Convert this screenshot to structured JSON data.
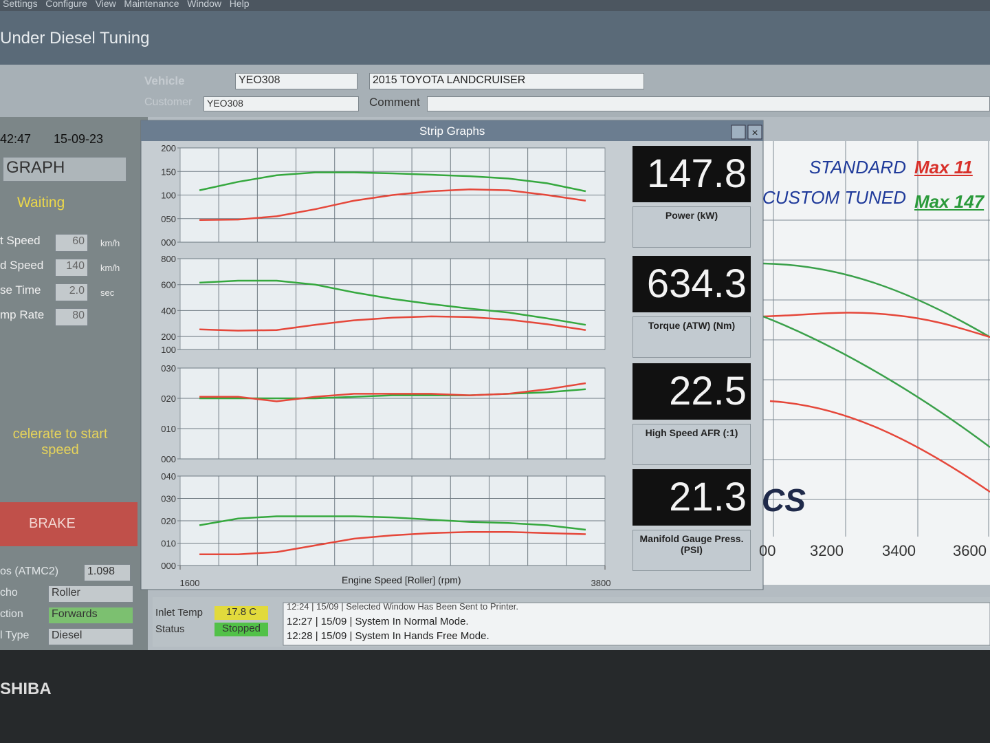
{
  "menu": [
    "Settings",
    "Configure",
    "View",
    "Maintenance",
    "Window",
    "Help"
  ],
  "app_title": "Under Diesel Tuning",
  "vehicle": {
    "vehicle_label": "Vehicle",
    "vehicle": "YEO308",
    "description": "2015 TOYOTA LANDCRUISER",
    "customer_label": "Customer",
    "customer": "YEO308",
    "comment_label": "Comment"
  },
  "left_panel": {
    "time": "42:47",
    "date": "15-09-23",
    "mode": "GRAPH",
    "state": "Waiting",
    "params": [
      {
        "label": "t Speed",
        "value": "60",
        "unit": "km/h"
      },
      {
        "label": "d Speed",
        "value": "140",
        "unit": "km/h"
      },
      {
        "label": "se Time",
        "value": "2.0",
        "unit": "sec"
      },
      {
        "label": "mp Rate",
        "value": "80"
      }
    ],
    "prompt": "celerate to start speed",
    "brake": "BRAKE",
    "fields": [
      {
        "label": "os (ATMC2)",
        "value": "1.098"
      },
      {
        "label": "cho",
        "value": "Roller"
      },
      {
        "label": "ction",
        "value": "Forwards"
      },
      {
        "label": "l Type",
        "value": "Diesel"
      }
    ]
  },
  "strip_graphs": {
    "title": "Strip Graphs",
    "x_label": "Engine Speed [Roller] (rpm)",
    "xlim": [
      1600,
      3800
    ],
    "xticks": [
      1600,
      3800
    ],
    "x": [
      1700,
      1900,
      2100,
      2300,
      2500,
      2700,
      2900,
      3100,
      3300,
      3500,
      3700
    ],
    "charts": [
      {
        "type": "line",
        "ylim": [
          0,
          200
        ],
        "yticks": [
          {
            "value": 0,
            "label": "000"
          },
          {
            "value": 50,
            "label": "050"
          },
          {
            "value": 100,
            "label": "100"
          },
          {
            "value": 150,
            "label": "150"
          },
          {
            "value": 200,
            "label": "200"
          }
        ],
        "series": [
          {
            "color": "#35a83e",
            "values": [
              110,
              128,
              142,
              148,
              148,
              146,
              143,
              140,
              135,
              125,
              108
            ]
          },
          {
            "color": "#e5473a",
            "values": [
              47,
              48,
              55,
              70,
              88,
              100,
              108,
              112,
              110,
              100,
              88
            ]
          }
        ],
        "gauge": {
          "value": 147.8,
          "label": "Power (kW)"
        }
      },
      {
        "type": "line",
        "ylim": [
          100,
          800
        ],
        "yticks": [
          100,
          200,
          400,
          600,
          800
        ],
        "series": [
          {
            "color": "#35a83e",
            "values": [
              615,
              630,
              630,
              600,
              540,
              490,
              450,
              415,
              385,
              340,
              290
            ]
          },
          {
            "color": "#e5473a",
            "values": [
              255,
              245,
              250,
              290,
              325,
              345,
              355,
              350,
              330,
              295,
              250
            ]
          }
        ],
        "gauge": {
          "value": 634.3,
          "label": "Torque (ATW) (Nm)"
        }
      },
      {
        "type": "line",
        "ylim": [
          0,
          30
        ],
        "yticks": [
          {
            "value": 0,
            "label": "000"
          },
          {
            "value": 10,
            "label": "010"
          },
          {
            "value": 20,
            "label": "020"
          },
          {
            "value": 30,
            "label": "030"
          }
        ],
        "series": [
          {
            "color": "#35a83e",
            "values": [
              20,
              20,
              20,
              20,
              20.5,
              21,
              21,
              21,
              21.5,
              22,
              23
            ]
          },
          {
            "color": "#e5473a",
            "values": [
              20.5,
              20.5,
              19,
              20.5,
              21.5,
              21.5,
              21.5,
              21,
              21.5,
              23,
              25
            ]
          }
        ],
        "gauge": {
          "value": 22.5,
          "label": "High Speed AFR (:1)"
        }
      },
      {
        "type": "line",
        "ylim": [
          0,
          40
        ],
        "yticks": [
          {
            "value": 0,
            "label": "000"
          },
          {
            "value": 10,
            "label": "010"
          },
          {
            "value": 20,
            "label": "020"
          },
          {
            "value": 30,
            "label": "030"
          },
          {
            "value": 40,
            "label": "040"
          }
        ],
        "series": [
          {
            "color": "#35a83e",
            "values": [
              18,
              21,
              22,
              22,
              22,
              21.5,
              20.5,
              19.5,
              19,
              18,
              16
            ]
          },
          {
            "color": "#e5473a",
            "values": [
              5,
              5,
              6,
              9,
              12,
              13.5,
              14.5,
              15,
              15,
              14.5,
              14
            ]
          }
        ],
        "gauge": {
          "value": 21.3,
          "label": "Manifold Gauge Press. (PSI)"
        }
      }
    ]
  },
  "status": {
    "inlet_label": "Inlet Temp",
    "inlet": "17.8 C",
    "status_label": "Status",
    "status": "Stopped",
    "log": [
      "12:24 | 15/09 | Selected Window Has Been Sent to Printer.",
      "12:27 | 15/09 | System In Normal Mode.",
      "12:28 | 15/09 | System In Hands Free Mode."
    ]
  },
  "background_chart": {
    "legend": [
      {
        "name": "STANDARD",
        "max": "Max 11"
      },
      {
        "name": "CUSTOM TUNED",
        "max": "Max 147"
      }
    ],
    "x_labels": [
      "00",
      "3200",
      "3400",
      "3600"
    ],
    "logo": "CS"
  },
  "bezel": "SHIBA"
}
